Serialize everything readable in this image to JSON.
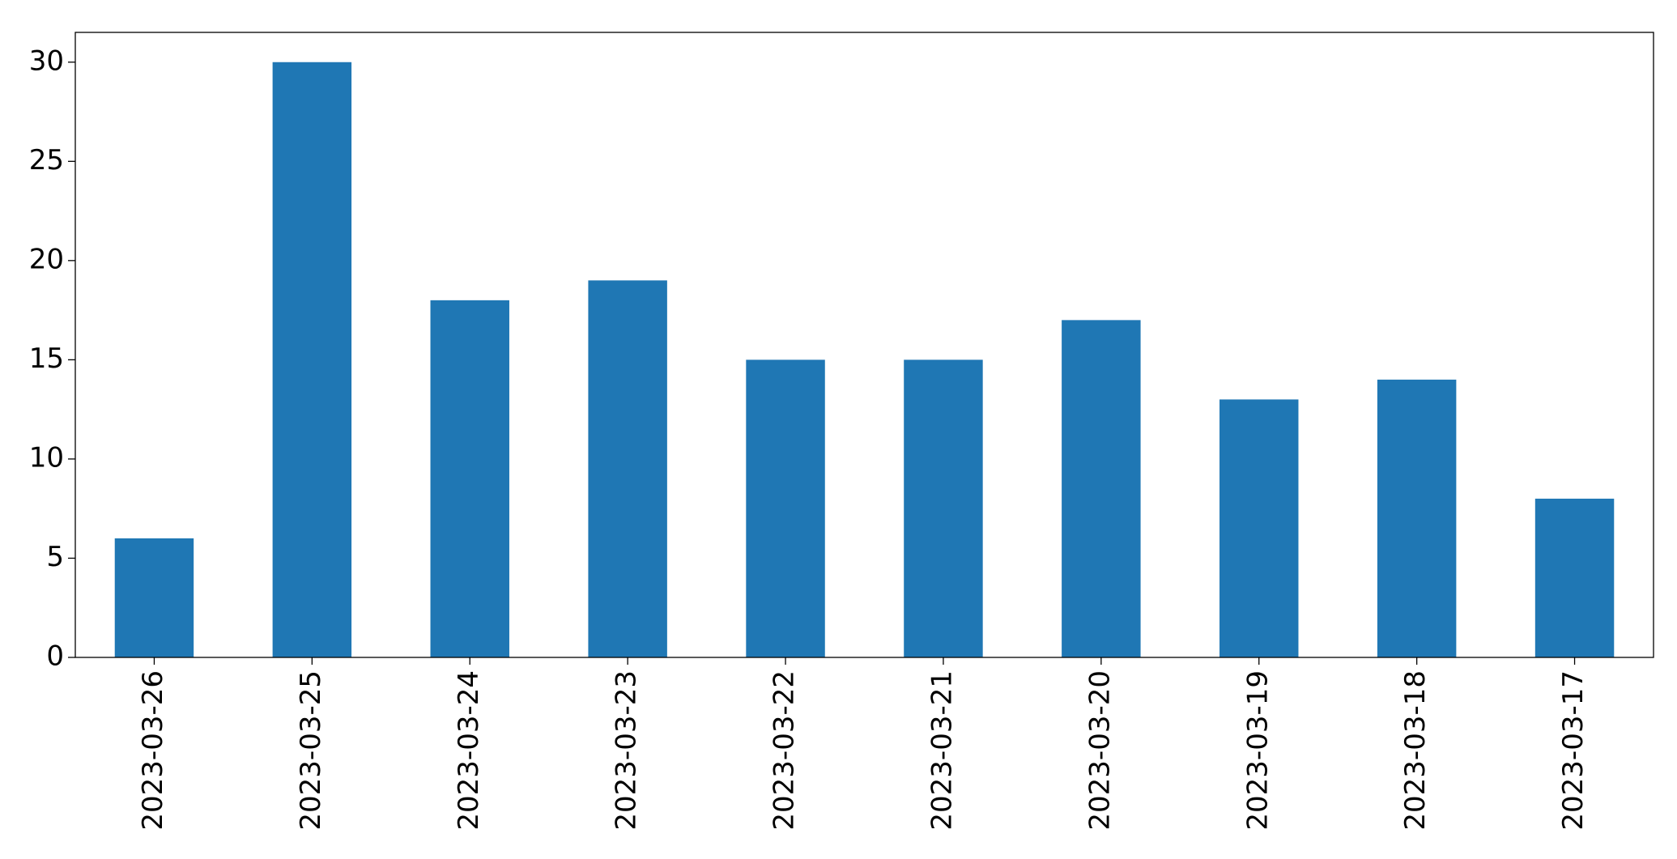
{
  "chart_data": {
    "type": "bar",
    "categories": [
      "2023-03-26",
      "2023-03-25",
      "2023-03-24",
      "2023-03-23",
      "2023-03-22",
      "2023-03-21",
      "2023-03-20",
      "2023-03-19",
      "2023-03-18",
      "2023-03-17"
    ],
    "values": [
      6,
      30,
      18,
      19,
      15,
      15,
      17,
      13,
      14,
      8
    ],
    "color": "#1f77b4",
    "ylim": [
      0,
      31.5
    ],
    "yticks": [
      0,
      5,
      10,
      15,
      20,
      25,
      30
    ],
    "grid": false
  }
}
